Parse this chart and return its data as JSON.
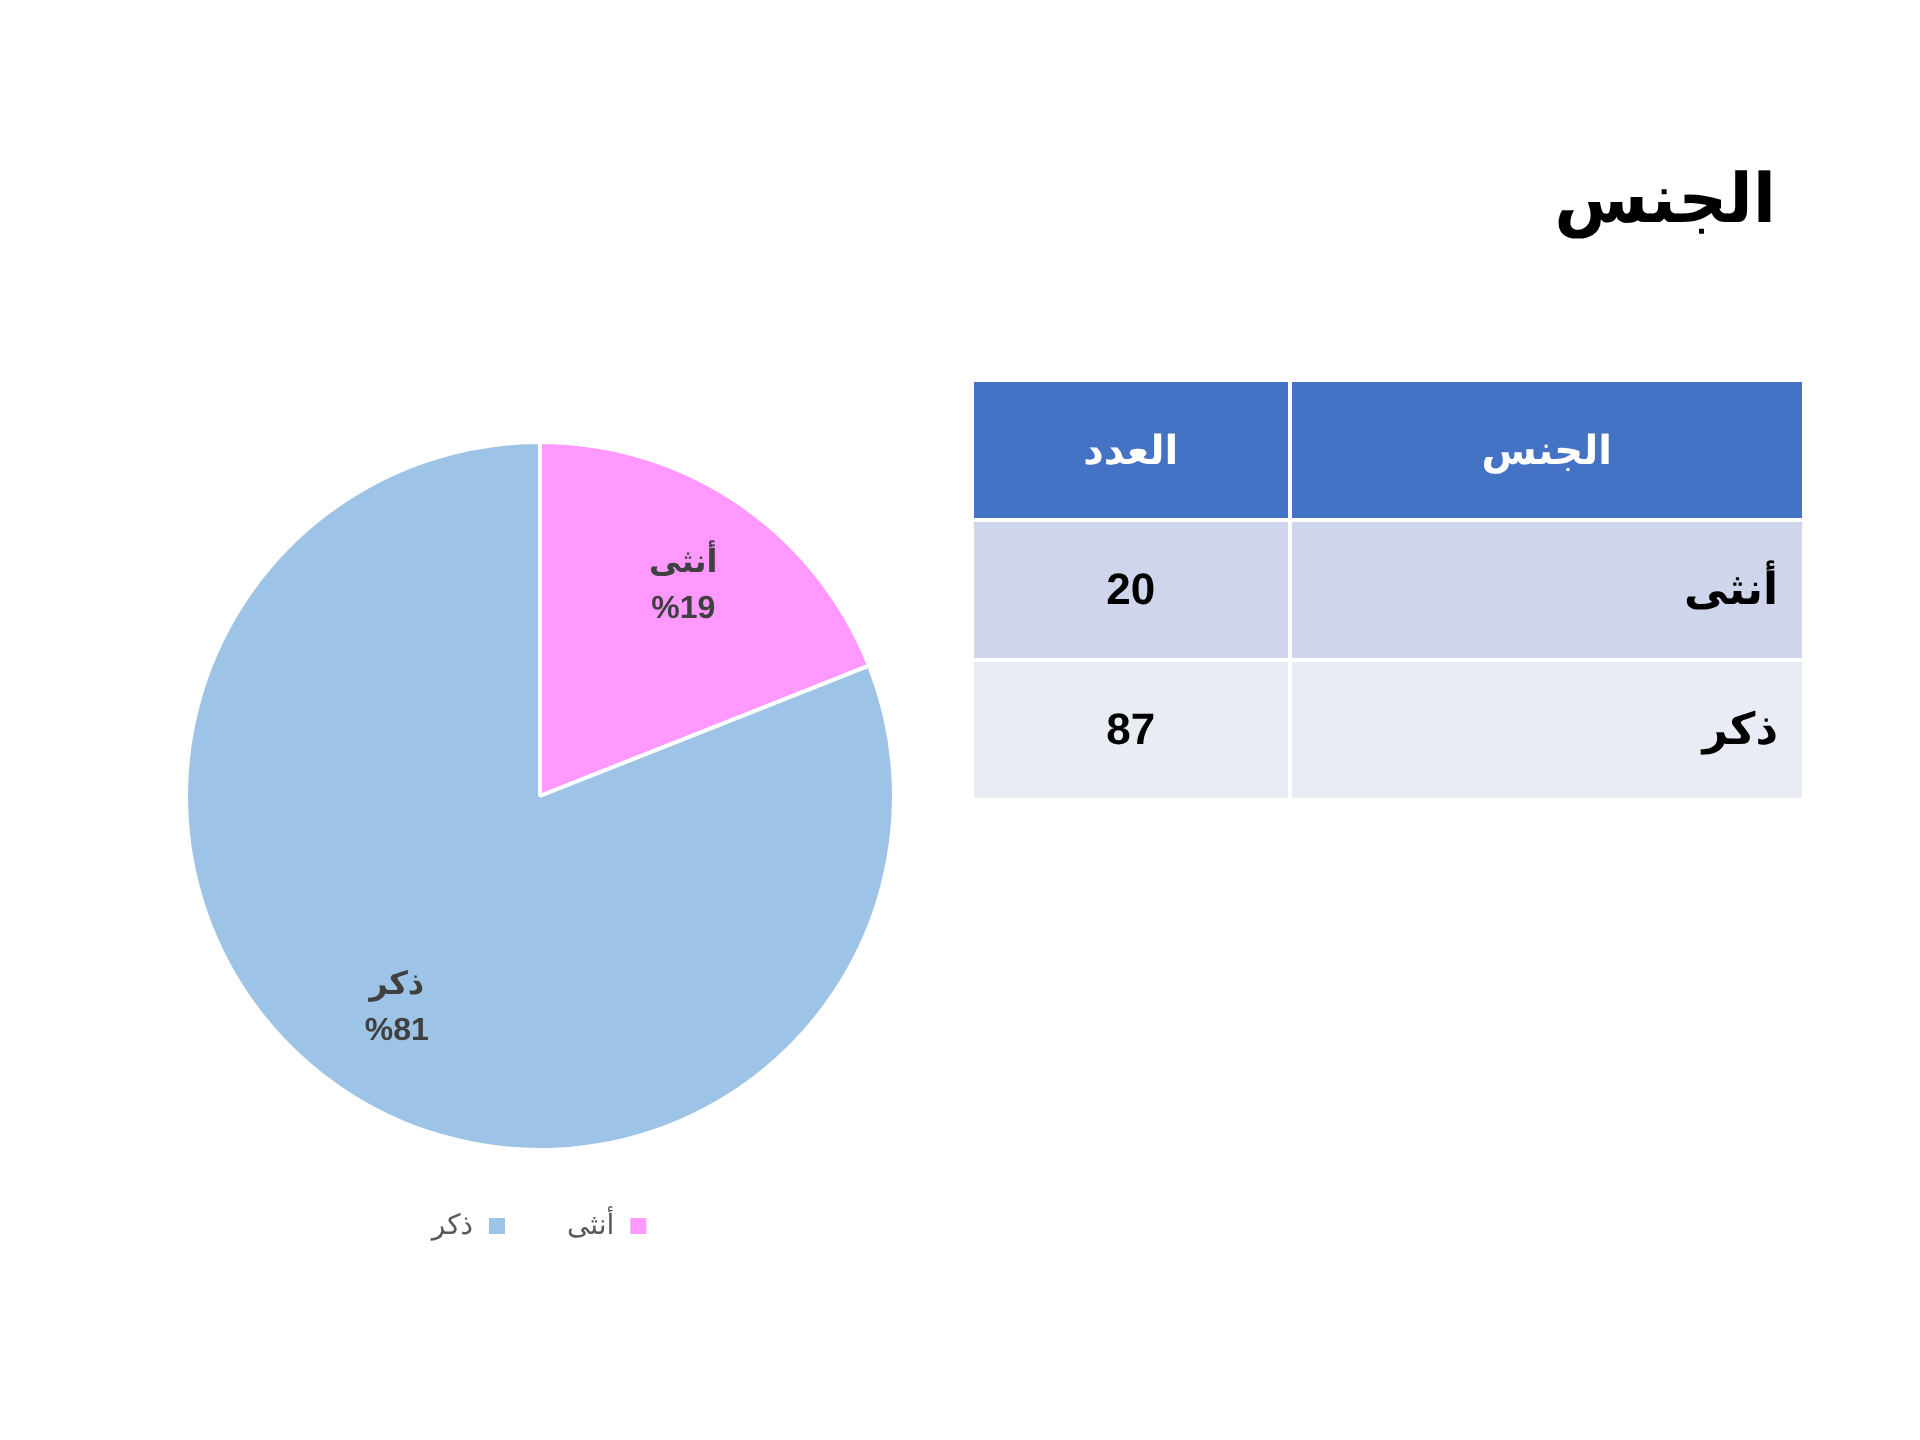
{
  "chart_data": {
    "type": "pie",
    "title": "الجنس",
    "categories": [
      "أنثى",
      "ذكر"
    ],
    "values": [
      19,
      81
    ],
    "colors": [
      "#ff99ff",
      "#9dc3e6"
    ],
    "value_labels": [
      "%19",
      "%81"
    ],
    "annotations": [
      "الجنس",
      "العدد",
      "20",
      "87"
    ],
    "legend": "bottom"
  }
}
